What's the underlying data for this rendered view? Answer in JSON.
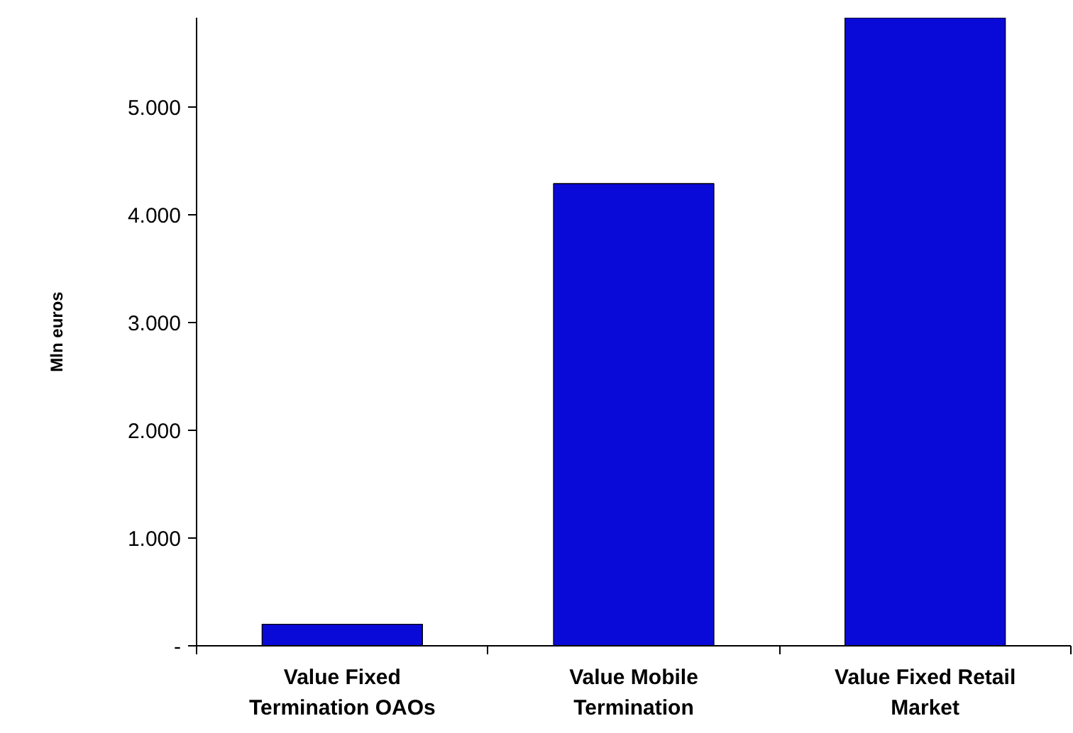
{
  "chart_data": {
    "type": "bar",
    "ylabel": "Mln euros",
    "categories": [
      "Value Fixed Termination OAOs",
      "Value Mobile Termination",
      "Value Fixed Retail Market"
    ],
    "values": [
      200,
      4290,
      5830
    ],
    "color": "#0a0ad8",
    "ylim": [
      0,
      5830
    ],
    "yticks": [
      {
        "value": 0,
        "label": "-"
      },
      {
        "value": 1000,
        "label": "1.000"
      },
      {
        "value": 2000,
        "label": "2.000"
      },
      {
        "value": 3000,
        "label": "3.000"
      },
      {
        "value": 4000,
        "label": "4.000"
      },
      {
        "value": 5000,
        "label": "5.000"
      }
    ],
    "grid": false
  }
}
